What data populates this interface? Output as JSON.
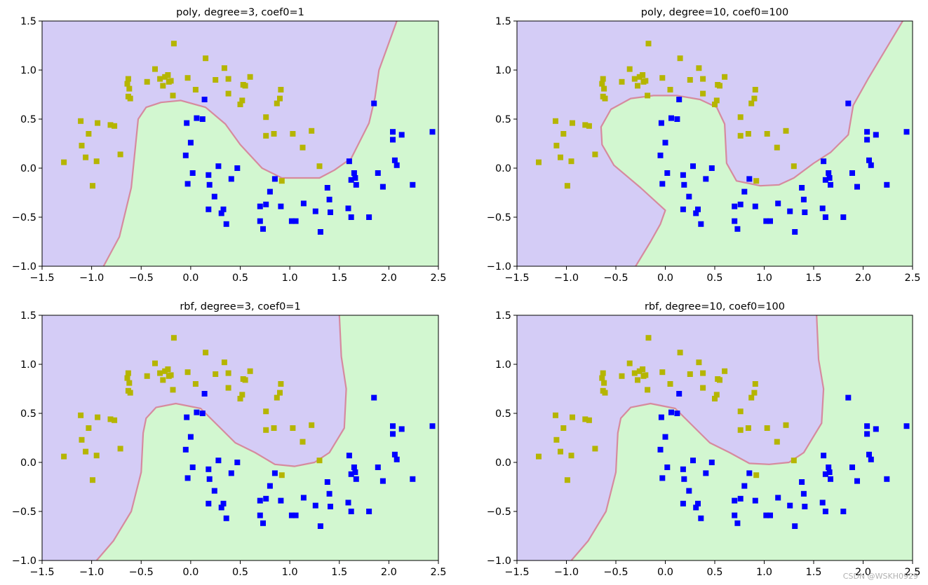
{
  "colors": {
    "region_class0": "#d4ccf6",
    "region_class1": "#d2f7d0",
    "boundary": "#d68a9e",
    "class0_marker": "#b5b500",
    "class1_marker": "#0000ff"
  },
  "watermark": "CSDN @WSKH0929",
  "points": {
    "class0": [
      [
        -1.28,
        0.06
      ],
      [
        -1.11,
        0.48
      ],
      [
        -1.1,
        0.23
      ],
      [
        -1.06,
        0.11
      ],
      [
        -1.03,
        0.35
      ],
      [
        -0.99,
        -0.18
      ],
      [
        -0.95,
        0.07
      ],
      [
        -0.94,
        0.46
      ],
      [
        -0.81,
        0.44
      ],
      [
        -0.77,
        0.43
      ],
      [
        -0.71,
        0.14
      ],
      [
        -0.64,
        0.86
      ],
      [
        -0.63,
        0.91
      ],
      [
        -0.62,
        0.81
      ],
      [
        -0.63,
        0.73
      ],
      [
        -0.61,
        0.71
      ],
      [
        -0.44,
        0.88
      ],
      [
        -0.36,
        1.01
      ],
      [
        -0.31,
        0.91
      ],
      [
        -0.28,
        0.84
      ],
      [
        -0.26,
        0.93
      ],
      [
        -0.22,
        0.88
      ],
      [
        -0.23,
        0.95
      ],
      [
        -0.2,
        0.89
      ],
      [
        -0.17,
        1.27
      ],
      [
        -0.18,
        0.74
      ],
      [
        -0.03,
        0.92
      ],
      [
        0.05,
        0.8
      ],
      [
        0.15,
        1.12
      ],
      [
        0.25,
        0.9
      ],
      [
        0.34,
        1.02
      ],
      [
        0.38,
        0.76
      ],
      [
        0.38,
        0.91
      ],
      [
        0.5,
        0.65
      ],
      [
        0.52,
        0.69
      ],
      [
        0.53,
        0.85
      ],
      [
        0.55,
        0.84
      ],
      [
        0.6,
        0.93
      ],
      [
        0.76,
        0.52
      ],
      [
        0.76,
        0.33
      ],
      [
        0.87,
        0.66
      ],
      [
        0.84,
        0.35
      ],
      [
        0.91,
        0.8
      ],
      [
        0.9,
        0.71
      ],
      [
        1.03,
        0.35
      ],
      [
        1.13,
        0.21
      ],
      [
        1.22,
        0.38
      ],
      [
        1.3,
        0.02
      ],
      [
        0.92,
        -0.13
      ]
    ],
    "class1": [
      [
        -0.05,
        0.13
      ],
      [
        -0.04,
        0.46
      ],
      [
        -0.03,
        -0.16
      ],
      [
        0.0,
        0.26
      ],
      [
        0.02,
        -0.05
      ],
      [
        0.06,
        0.51
      ],
      [
        0.12,
        0.5
      ],
      [
        0.14,
        0.7
      ],
      [
        0.18,
        -0.07
      ],
      [
        0.18,
        -0.42
      ],
      [
        0.19,
        -0.17
      ],
      [
        0.24,
        -0.29
      ],
      [
        0.28,
        0.02
      ],
      [
        0.31,
        -0.46
      ],
      [
        0.33,
        -0.42
      ],
      [
        0.36,
        -0.57
      ],
      [
        0.41,
        -0.11
      ],
      [
        0.47,
        0.0
      ],
      [
        0.7,
        -0.39
      ],
      [
        0.7,
        -0.54
      ],
      [
        0.73,
        -0.62
      ],
      [
        0.76,
        -0.37
      ],
      [
        0.8,
        -0.24
      ],
      [
        0.85,
        -0.11
      ],
      [
        0.91,
        -0.39
      ],
      [
        1.02,
        -0.54
      ],
      [
        1.06,
        -0.54
      ],
      [
        1.14,
        -0.36
      ],
      [
        1.26,
        -0.44
      ],
      [
        1.31,
        -0.65
      ],
      [
        1.38,
        -0.2
      ],
      [
        1.4,
        -0.32
      ],
      [
        1.41,
        -0.45
      ],
      [
        1.6,
        0.07
      ],
      [
        1.59,
        -0.41
      ],
      [
        1.62,
        -0.12
      ],
      [
        1.62,
        -0.5
      ],
      [
        1.65,
        -0.05
      ],
      [
        1.66,
        -0.1
      ],
      [
        1.67,
        -0.17
      ],
      [
        1.8,
        -0.5
      ],
      [
        1.85,
        0.66
      ],
      [
        1.89,
        -0.05
      ],
      [
        1.94,
        -0.19
      ],
      [
        2.04,
        0.37
      ],
      [
        2.04,
        0.29
      ],
      [
        2.06,
        0.08
      ],
      [
        2.08,
        0.03
      ],
      [
        2.13,
        0.34
      ],
      [
        2.24,
        -0.17
      ],
      [
        2.44,
        0.37
      ]
    ]
  },
  "chart_data": [
    {
      "type": "scatter",
      "title": "poly, degree=3, coef0=1",
      "xlim": [
        -1.5,
        2.5
      ],
      "ylim": [
        -1.0,
        1.5
      ],
      "xticks": [
        "−1.5",
        "−1.0",
        "−0.5",
        "0.0",
        "0.5",
        "1.0",
        "1.5",
        "2.0",
        "2.5"
      ],
      "yticks": [
        "−1.0",
        "−0.5",
        "0.0",
        "0.5",
        "1.0",
        "1.5"
      ],
      "boundary": [
        [
          -0.88,
          -1.0
        ],
        [
          -0.72,
          -0.7
        ],
        [
          -0.6,
          -0.2
        ],
        [
          -0.55,
          0.3
        ],
        [
          -0.53,
          0.5
        ],
        [
          -0.45,
          0.62
        ],
        [
          -0.3,
          0.67
        ],
        [
          -0.1,
          0.69
        ],
        [
          0.15,
          0.62
        ],
        [
          0.35,
          0.45
        ],
        [
          0.5,
          0.24
        ],
        [
          0.72,
          0.0
        ],
        [
          0.92,
          -0.1
        ],
        [
          1.1,
          -0.1
        ],
        [
          1.3,
          -0.1
        ],
        [
          1.45,
          -0.02
        ],
        [
          1.62,
          0.1
        ],
        [
          1.8,
          0.46
        ],
        [
          1.86,
          0.72
        ],
        [
          1.9,
          1.0
        ],
        [
          2.08,
          1.5
        ]
      ]
    },
    {
      "type": "scatter",
      "title": "poly, degree=10, coef0=100",
      "xlim": [
        -1.5,
        2.5
      ],
      "ylim": [
        -1.0,
        1.5
      ],
      "xticks": [
        "−1.5",
        "−1.0",
        "−0.5",
        "0.0",
        "0.5",
        "1.0",
        "1.5",
        "2.0",
        "2.5"
      ],
      "yticks": [
        "−1.0",
        "−0.5",
        "0.0",
        "0.5",
        "1.0",
        "1.5"
      ],
      "boundary": [
        [
          -0.3,
          -1.0
        ],
        [
          -0.15,
          -0.75
        ],
        [
          -0.05,
          -0.57
        ],
        [
          0.0,
          -0.43
        ],
        [
          -0.25,
          -0.2
        ],
        [
          -0.52,
          0.03
        ],
        [
          -0.64,
          0.24
        ],
        [
          -0.65,
          0.42
        ],
        [
          -0.55,
          0.6
        ],
        [
          -0.35,
          0.71
        ],
        [
          -0.12,
          0.74
        ],
        [
          0.12,
          0.74
        ],
        [
          0.35,
          0.7
        ],
        [
          0.52,
          0.62
        ],
        [
          0.6,
          0.45
        ],
        [
          0.62,
          0.05
        ],
        [
          0.72,
          -0.13
        ],
        [
          0.96,
          -0.18
        ],
        [
          1.15,
          -0.17
        ],
        [
          1.3,
          -0.1
        ],
        [
          1.5,
          0.05
        ],
        [
          1.67,
          0.16
        ],
        [
          1.85,
          0.34
        ],
        [
          1.9,
          0.64
        ],
        [
          2.05,
          0.91
        ],
        [
          2.4,
          1.5
        ]
      ]
    },
    {
      "type": "scatter",
      "title": "rbf, degree=3, coef0=1",
      "xlim": [
        -1.5,
        2.5
      ],
      "ylim": [
        -1.0,
        1.5
      ],
      "xticks": [
        "−1.5",
        "−1.0",
        "−0.5",
        "0.0",
        "0.5",
        "1.0",
        "1.5",
        "2.0",
        "2.5"
      ],
      "yticks": [
        "−1.0",
        "−0.5",
        "0.0",
        "0.5",
        "1.0",
        "1.5"
      ],
      "boundary": [
        [
          -0.95,
          -1.0
        ],
        [
          -0.78,
          -0.8
        ],
        [
          -0.6,
          -0.5
        ],
        [
          -0.5,
          -0.1
        ],
        [
          -0.48,
          0.3
        ],
        [
          -0.45,
          0.45
        ],
        [
          -0.35,
          0.56
        ],
        [
          -0.15,
          0.6
        ],
        [
          0.1,
          0.55
        ],
        [
          0.3,
          0.35
        ],
        [
          0.45,
          0.2
        ],
        [
          0.65,
          0.1
        ],
        [
          0.85,
          -0.02
        ],
        [
          1.05,
          -0.04
        ],
        [
          1.25,
          0.0
        ],
        [
          1.4,
          0.1
        ],
        [
          1.55,
          0.35
        ],
        [
          1.57,
          0.75
        ],
        [
          1.52,
          1.08
        ],
        [
          1.5,
          1.5
        ]
      ]
    },
    {
      "type": "scatter",
      "title": "rbf, degree=10, coef0=100",
      "xlim": [
        -1.5,
        2.5
      ],
      "ylim": [
        -1.0,
        1.5
      ],
      "xticks": [
        "−1.5",
        "−1.0",
        "−0.5",
        "0.0",
        "0.5",
        "1.0",
        "1.5",
        "2.0",
        "2.5"
      ],
      "yticks": [
        "−1.0",
        "−0.5",
        "0.0",
        "0.5",
        "1.0",
        "1.5"
      ],
      "boundary": [
        [
          -0.95,
          -1.0
        ],
        [
          -0.78,
          -0.8
        ],
        [
          -0.6,
          -0.5
        ],
        [
          -0.5,
          -0.1
        ],
        [
          -0.48,
          0.3
        ],
        [
          -0.45,
          0.45
        ],
        [
          -0.35,
          0.56
        ],
        [
          -0.15,
          0.6
        ],
        [
          0.1,
          0.55
        ],
        [
          0.3,
          0.35
        ],
        [
          0.45,
          0.2
        ],
        [
          0.65,
          0.1
        ],
        [
          0.85,
          -0.01
        ],
        [
          1.05,
          -0.02
        ],
        [
          1.25,
          0.0
        ],
        [
          1.4,
          0.1
        ],
        [
          1.58,
          0.4
        ],
        [
          1.6,
          0.75
        ],
        [
          1.55,
          1.05
        ],
        [
          1.53,
          1.5
        ]
      ]
    }
  ]
}
